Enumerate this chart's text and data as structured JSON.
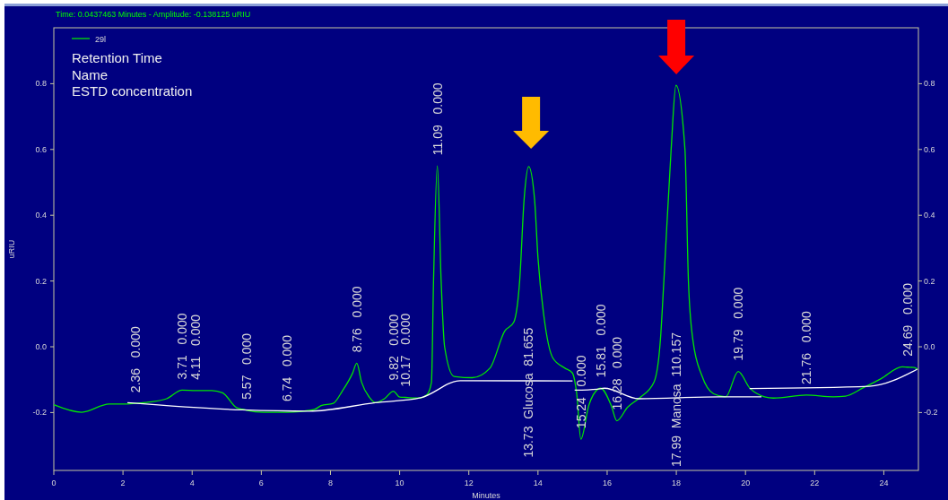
{
  "chart_data": {
    "type": "line",
    "title": "Time:  0.0437463 Minutes - Amplitude:  -0.138125 uRIU",
    "xlabel": "Minutes",
    "ylabel": "uRIU",
    "xlim": [
      0,
      25
    ],
    "xticks": [
      0,
      2,
      4,
      6,
      8,
      10,
      12,
      14,
      16,
      18,
      20,
      22,
      24
    ],
    "ylim": [
      -0.376,
      0.97
    ],
    "yticks": [
      -0.2,
      {
        "value": 0,
        "label": "0.0"
      },
      0.2,
      0.4,
      0.6,
      0.8
    ],
    "y2lim": [
      -0.376,
      0.97
    ],
    "y2ticks": [
      -0.2,
      {
        "value": 0,
        "label": "0.0"
      },
      0.2,
      0.4,
      0.6,
      0.8
    ],
    "legend": "top left",
    "series": [
      {
        "name": "29l",
        "color": "#00e600",
        "x": [
          0,
          0.81,
          1.6,
          2.13,
          2.36,
          2.83,
          3.26,
          3.71,
          4.11,
          4.57,
          4.88,
          5.28,
          5.45,
          5.57,
          6.06,
          6.74,
          7.11,
          7.55,
          7.73,
          8.08,
          8.34,
          8.64,
          8.76,
          8.9,
          9.12,
          9.3,
          9.56,
          9.82,
          10,
          10.17,
          10.57,
          10.79,
          10.92,
          10.98,
          11.09,
          11.2,
          11.3,
          11.57,
          12.1,
          12.61,
          13.04,
          13.3,
          13.47,
          13.6,
          13.73,
          13.9,
          14.0,
          14.17,
          14.43,
          14.78,
          14.99,
          15.12,
          15.24,
          15.47,
          15.73,
          15.81,
          16.12,
          16.28,
          16.59,
          16.93,
          17.36,
          17.54,
          17.64,
          17.85,
          17.99,
          18.25,
          18.35,
          18.48,
          18.74,
          19.08,
          19.43,
          19.79,
          20.12,
          20.55,
          20.81,
          21.76,
          22.54,
          22.89,
          23.4,
          23.92,
          24.53,
          24.69,
          24.88,
          24.97
        ],
        "values": [
          -0.176,
          -0.199,
          -0.174,
          -0.174,
          -0.172,
          -0.167,
          -0.158,
          -0.132,
          -0.133,
          -0.133,
          -0.14,
          -0.185,
          -0.19,
          -0.193,
          -0.199,
          -0.199,
          -0.197,
          -0.19,
          -0.179,
          -0.172,
          -0.135,
          -0.08,
          -0.05,
          -0.108,
          -0.153,
          -0.17,
          -0.158,
          -0.135,
          -0.153,
          -0.154,
          -0.156,
          -0.146,
          -0.108,
          0.2,
          0.55,
          0.2,
          0.0,
          -0.09,
          -0.094,
          -0.065,
          0.048,
          0.075,
          0.2,
          0.45,
          0.548,
          0.45,
          0.27,
          0.094,
          -0.034,
          -0.065,
          -0.079,
          -0.143,
          -0.281,
          -0.178,
          -0.129,
          -0.126,
          -0.179,
          -0.225,
          -0.184,
          -0.156,
          -0.106,
          0.021,
          0.2,
          0.6,
          0.795,
          0.6,
          0.2,
          0.02,
          -0.088,
          -0.143,
          -0.152,
          -0.075,
          -0.125,
          -0.152,
          -0.156,
          -0.147,
          -0.152,
          -0.15,
          -0.125,
          -0.097,
          -0.061,
          -0.062,
          -0.063,
          -0.068
        ]
      },
      {
        "color": "#ffffff",
        "x": [
          2.13,
          5.45,
          7.38,
          9.3,
          10.61,
          11.75,
          15.0
        ],
        "values": [
          -0.17,
          -0.192,
          -0.196,
          -0.17,
          -0.155,
          -0.103,
          -0.104
        ]
      },
      {
        "color": "#ffffff",
        "x": [
          15.06,
          15.71,
          15.92,
          16.91,
          19.25,
          20.46
        ],
        "values": [
          -0.132,
          -0.129,
          -0.126,
          -0.158,
          -0.152,
          -0.152
        ]
      },
      {
        "color": "#ffffff",
        "x": [
          20.12,
          23.58,
          24.97
        ],
        "values": [
          -0.127,
          -0.12,
          -0.068
        ]
      }
    ],
    "annotations": [
      "Retention Time",
      "Name",
      "ESTD concentration",
      {
        "text": "2.36   0.000",
        "x": 2.36,
        "y": -0.172
      },
      {
        "text": "3.71   0.000",
        "x": 3.71,
        "y": -0.132
      },
      {
        "text": "4.11   0.000",
        "x": 4.11,
        "y": -0.133
      },
      {
        "text": "5.57   0.000",
        "x": 5.57,
        "y": -0.193
      },
      {
        "text": "6.74   0.000",
        "x": 6.74,
        "y": -0.199
      },
      {
        "text": "8.76   0.000",
        "x": 8.76,
        "y": -0.05
      },
      {
        "text": "9.82   0.000",
        "x": 9.82,
        "y": -0.135
      },
      {
        "text": "10.17   0.000",
        "x": 10.17,
        "y": -0.154
      },
      {
        "text": "11.09   0.000",
        "x": 11.09,
        "y": 0.55
      },
      {
        "text": "13.73  Glucosa  81.655",
        "x": 13.73,
        "y": -0.103
      },
      {
        "text": "15.24   0.000",
        "x": 15.24,
        "y": -0.281
      },
      {
        "text": "15.81   0.000",
        "x": 15.81,
        "y": -0.126
      },
      {
        "text": "16.28   0.000",
        "x": 16.28,
        "y": -0.225
      },
      {
        "text": "17.99  Manosa  110.157",
        "x": 17.99,
        "y": -0.155
      },
      {
        "text": "19.79   0.000",
        "x": 19.79,
        "y": -0.075
      },
      {
        "text": "21.76   0.000",
        "x": 21.76,
        "y": -0.147
      },
      {
        "text": "24.69   0.000",
        "x": 24.69,
        "y": -0.062
      }
    ]
  }
}
